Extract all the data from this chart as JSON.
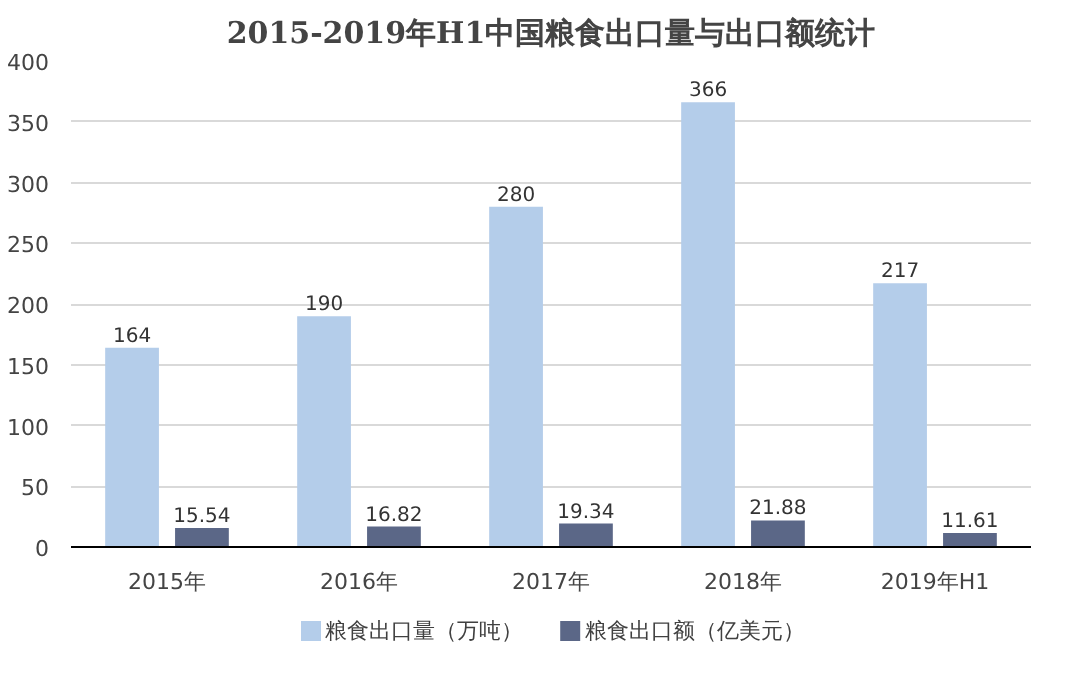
{
  "chart_data": {
    "type": "bar",
    "title": "2015-2019年H1中国粮食出口量与出口额统计",
    "categories": [
      "2015年",
      "2016年",
      "2017年",
      "2018年",
      "2019年H1"
    ],
    "series": [
      {
        "name": "粮食出口量（万吨）",
        "color": "#b4cdea",
        "values": [
          164,
          190,
          280,
          366,
          217
        ]
      },
      {
        "name": "粮食出口额（亿美元）",
        "color": "#5b6787",
        "values": [
          15.54,
          16.82,
          19.34,
          21.88,
          11.61
        ]
      }
    ],
    "ylim": [
      0,
      400
    ],
    "yticks": [
      0,
      50,
      100,
      150,
      200,
      250,
      300,
      350,
      400
    ],
    "grid": "y",
    "legend": "bottom",
    "data_labels": true
  }
}
